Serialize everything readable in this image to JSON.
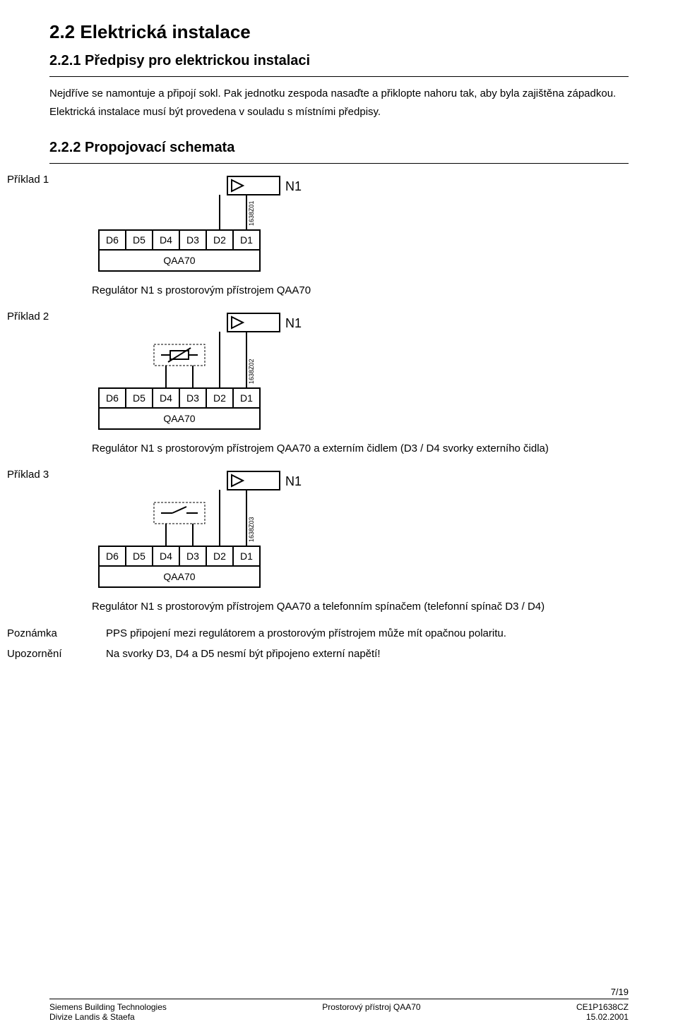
{
  "section": {
    "num_title": "2.2 Elektrická instalace",
    "sub1": "2.2.1 Předpisy pro elektrickou instalaci",
    "para1": "Nejdříve se namontuje a připojí sokl. Pak jednotku zespoda nasaďte a přiklopte nahoru tak, aby byla zajištěna západkou.",
    "para2": "Elektrická instalace musí být provedena v souladu s místními předpisy.",
    "sub2": "2.2.2 Propojovací schemata"
  },
  "examples": [
    {
      "label": "Příklad 1",
      "diagram": {
        "code": "1638Z01",
        "n1_label": "N1",
        "terminals": [
          "D6",
          "D5",
          "D4",
          "D3",
          "D2",
          "D1"
        ],
        "device_label": "QAA70",
        "has_dashed_box": false,
        "dashed_symbol": null,
        "colors": {
          "stroke": "#000000",
          "fill_bg": "#ffffff"
        },
        "line_width": 2,
        "font": {
          "n1": 18,
          "terminal": 14,
          "device": 14,
          "code": 9
        }
      },
      "caption": "Regulátor N1 s prostorovým přístrojem QAA70"
    },
    {
      "label": "Příklad 2",
      "diagram": {
        "code": "1638Z02",
        "n1_label": "N1",
        "terminals": [
          "D6",
          "D5",
          "D4",
          "D3",
          "D2",
          "D1"
        ],
        "device_label": "QAA70",
        "has_dashed_box": true,
        "dashed_symbol": "sensor",
        "colors": {
          "stroke": "#000000",
          "fill_bg": "#ffffff"
        },
        "line_width": 2,
        "font": {
          "n1": 18,
          "terminal": 14,
          "device": 14,
          "code": 9
        }
      },
      "caption": "Regulátor N1 s prostorovým přístrojem QAA70 a externím čidlem (D3 / D4 svorky externího čidla)"
    },
    {
      "label": "Příklad 3",
      "diagram": {
        "code": "1638Z03",
        "n1_label": "N1",
        "terminals": [
          "D6",
          "D5",
          "D4",
          "D3",
          "D2",
          "D1"
        ],
        "device_label": "QAA70",
        "has_dashed_box": true,
        "dashed_symbol": "switch",
        "colors": {
          "stroke": "#000000",
          "fill_bg": "#ffffff"
        },
        "line_width": 2,
        "font": {
          "n1": 18,
          "terminal": 14,
          "device": 14,
          "code": 9
        }
      },
      "caption": "Regulátor N1 s prostorovým přístrojem QAA70 a telefonním spínačem (telefonní spínač D3 / D4)"
    }
  ],
  "notes": {
    "note_label": "Poznámka",
    "note_text": "PPS připojení mezi regulátorem a prostorovým přístrojem může mít opačnou polaritu.",
    "warn_label": "Upozornění",
    "warn_text": "Na svorky D3, D4 a D5 nesmí být připojeno externí napětí!"
  },
  "footer": {
    "left1": "Siemens Building Technologies",
    "left2": "Divize Landis & Staefa",
    "center": "Prostorový přístroj QAA70",
    "right_page": "7/19",
    "right1": "CE1P1638CZ",
    "right2": "15.02.2001"
  }
}
